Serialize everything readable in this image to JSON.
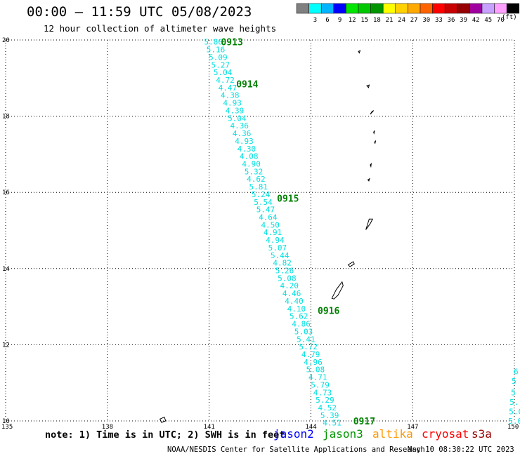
{
  "header": {
    "title": "00:00 – 11:59 UTC 05/08/2023",
    "subtitle": "12 hour collection of altimeter wave heights"
  },
  "colorbar": {
    "unit_label": "(ft)",
    "ticks": [
      "3",
      "6",
      "9",
      "12",
      "15",
      "18",
      "21",
      "24",
      "27",
      "30",
      "33",
      "36",
      "39",
      "42",
      "45",
      "70"
    ],
    "colors": [
      "#808080",
      "#00ffff",
      "#00b4ff",
      "#0000ff",
      "#00e600",
      "#00c800",
      "#009600",
      "#ffff00",
      "#ffd200",
      "#ffaa00",
      "#ff6400",
      "#ff0000",
      "#c80000",
      "#960000",
      "#a000a0",
      "#c8a0ff",
      "#ffa0ff",
      "#000000"
    ]
  },
  "footer": {
    "note": "note: 1) Time is in UTC; 2) SWH is in feet",
    "credit": "NOAA/NESDIS Center for Satellite Applications and Research",
    "timestamp": "May 10 08:30:22 UTC 2023",
    "satellites": [
      {
        "name": "jason2",
        "color": "#0000ff"
      },
      {
        "name": "jason3",
        "color": "#009600"
      },
      {
        "name": "altika",
        "color": "#ff9600"
      },
      {
        "name": "cryosat",
        "color": "#ff0000"
      },
      {
        "name": "s3a",
        "color": "#960000"
      }
    ]
  },
  "chart_data": {
    "type": "scatter",
    "title": "00:00 – 11:59 UTC 05/08/2023",
    "subtitle": "12 hour collection of altimeter wave heights",
    "xlim": [
      135,
      150
    ],
    "ylim": [
      10,
      20
    ],
    "x_ticks": [
      135,
      138,
      141,
      144,
      147,
      150
    ],
    "y_ticks": [
      10,
      12,
      14,
      16,
      18,
      20
    ],
    "grid": true,
    "value_color": "#00e0e0",
    "time_label_color": "#008000",
    "track": [
      {
        "lon": 140.85,
        "lat": 19.95,
        "swh": "5.86"
      },
      {
        "lon": 140.92,
        "lat": 19.75,
        "swh": "5.16"
      },
      {
        "lon": 140.99,
        "lat": 19.55,
        "swh": "5.09"
      },
      {
        "lon": 141.06,
        "lat": 19.35,
        "swh": "5.27"
      },
      {
        "lon": 141.13,
        "lat": 19.15,
        "swh": "5.04"
      },
      {
        "lon": 141.2,
        "lat": 18.95,
        "swh": "4.72"
      },
      {
        "lon": 141.27,
        "lat": 18.75,
        "swh": "4.47"
      },
      {
        "lon": 141.34,
        "lat": 18.55,
        "swh": "4.38"
      },
      {
        "lon": 141.41,
        "lat": 18.35,
        "swh": "4.93"
      },
      {
        "lon": 141.48,
        "lat": 18.15,
        "swh": "4.39"
      },
      {
        "lon": 141.55,
        "lat": 17.95,
        "swh": "5.04"
      },
      {
        "lon": 141.62,
        "lat": 17.75,
        "swh": "4.36"
      },
      {
        "lon": 141.69,
        "lat": 17.55,
        "swh": "4.36"
      },
      {
        "lon": 141.76,
        "lat": 17.35,
        "swh": "4.93"
      },
      {
        "lon": 141.83,
        "lat": 17.15,
        "swh": "4.30"
      },
      {
        "lon": 141.9,
        "lat": 16.95,
        "swh": "4.08"
      },
      {
        "lon": 141.97,
        "lat": 16.75,
        "swh": "4.90"
      },
      {
        "lon": 142.04,
        "lat": 16.55,
        "swh": "5.32"
      },
      {
        "lon": 142.11,
        "lat": 16.35,
        "swh": "4.62"
      },
      {
        "lon": 142.18,
        "lat": 16.15,
        "swh": "5.81"
      },
      {
        "lon": 142.25,
        "lat": 15.95,
        "swh": "5.24"
      },
      {
        "lon": 142.32,
        "lat": 15.75,
        "swh": "5.54"
      },
      {
        "lon": 142.39,
        "lat": 15.55,
        "swh": "5.47"
      },
      {
        "lon": 142.46,
        "lat": 15.35,
        "swh": "4.64"
      },
      {
        "lon": 142.53,
        "lat": 15.15,
        "swh": "4.50"
      },
      {
        "lon": 142.6,
        "lat": 14.95,
        "swh": "4.91"
      },
      {
        "lon": 142.67,
        "lat": 14.75,
        "swh": "4.94"
      },
      {
        "lon": 142.74,
        "lat": 14.55,
        "swh": "5.07"
      },
      {
        "lon": 142.81,
        "lat": 14.35,
        "swh": "5.44"
      },
      {
        "lon": 142.88,
        "lat": 14.15,
        "swh": "4.82"
      },
      {
        "lon": 142.95,
        "lat": 13.95,
        "swh": "5.26"
      },
      {
        "lon": 143.02,
        "lat": 13.75,
        "swh": "5.08"
      },
      {
        "lon": 143.09,
        "lat": 13.55,
        "swh": "4.20"
      },
      {
        "lon": 143.16,
        "lat": 13.35,
        "swh": "4.46"
      },
      {
        "lon": 143.23,
        "lat": 13.15,
        "swh": "4.40"
      },
      {
        "lon": 143.3,
        "lat": 12.95,
        "swh": "4.10"
      },
      {
        "lon": 143.37,
        "lat": 12.75,
        "swh": "5.62"
      },
      {
        "lon": 143.44,
        "lat": 12.55,
        "swh": "4.86"
      },
      {
        "lon": 143.51,
        "lat": 12.35,
        "swh": "5.03"
      },
      {
        "lon": 143.58,
        "lat": 12.15,
        "swh": "5.41"
      },
      {
        "lon": 143.65,
        "lat": 11.95,
        "swh": "5.72"
      },
      {
        "lon": 143.72,
        "lat": 11.75,
        "swh": "4.79"
      },
      {
        "lon": 143.79,
        "lat": 11.55,
        "swh": "4.96"
      },
      {
        "lon": 143.86,
        "lat": 11.35,
        "swh": "5.08"
      },
      {
        "lon": 143.93,
        "lat": 11.15,
        "swh": "4.71"
      },
      {
        "lon": 144.0,
        "lat": 10.95,
        "swh": "5.79"
      },
      {
        "lon": 144.07,
        "lat": 10.75,
        "swh": "4.73"
      },
      {
        "lon": 144.14,
        "lat": 10.55,
        "swh": "5.29"
      },
      {
        "lon": 144.21,
        "lat": 10.35,
        "swh": "4.52"
      },
      {
        "lon": 144.28,
        "lat": 10.15,
        "swh": "5.39"
      },
      {
        "lon": 144.35,
        "lat": 9.95,
        "swh": "4.51"
      }
    ],
    "time_labels": [
      {
        "lon": 141.35,
        "lat": 19.95,
        "text": "0913"
      },
      {
        "lon": 141.8,
        "lat": 18.85,
        "text": "0914"
      },
      {
        "lon": 143.0,
        "lat": 15.85,
        "text": "0915"
      },
      {
        "lon": 144.2,
        "lat": 12.9,
        "text": "0916"
      },
      {
        "lon": 145.25,
        "lat": 10.0,
        "text": "0917"
      }
    ],
    "edge_values": [
      {
        "lon": 149.98,
        "lat": 11.3,
        "swh": "6"
      },
      {
        "lon": 149.92,
        "lat": 11.05,
        "swh": "5"
      },
      {
        "lon": 149.9,
        "lat": 10.75,
        "swh": "5"
      },
      {
        "lon": 149.86,
        "lat": 10.5,
        "swh": "5."
      },
      {
        "lon": 149.84,
        "lat": 10.25,
        "swh": "5.0"
      },
      {
        "lon": 149.82,
        "lat": 10.0,
        "swh": "5.0"
      }
    ]
  }
}
